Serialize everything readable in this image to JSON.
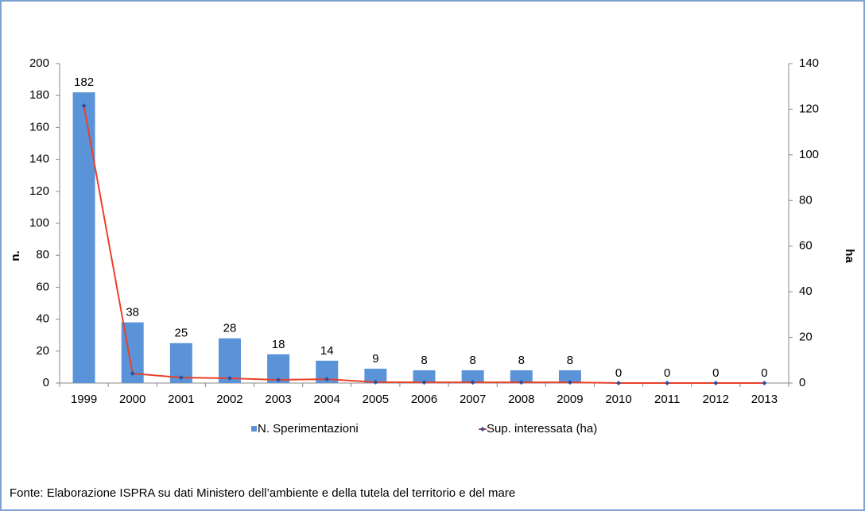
{
  "chart_data": {
    "type": "bar",
    "categories": [
      "1999",
      "2000",
      "2001",
      "2002",
      "2003",
      "2004",
      "2005",
      "2006",
      "2007",
      "2008",
      "2009",
      "2010",
      "2011",
      "2012",
      "2013"
    ],
    "series": [
      {
        "name": "N. Sperimentazioni",
        "type": "bar",
        "color": "#5b93d8",
        "values": [
          182,
          38,
          25,
          28,
          18,
          14,
          9,
          8,
          8,
          8,
          8,
          0,
          0,
          0,
          0
        ]
      },
      {
        "name": "Sup. interessata (ha)",
        "type": "line",
        "axis": "y2",
        "color": "#e8402a",
        "marker_color": "#2f4f9f",
        "values": [
          121.5,
          4.2,
          2.4,
          2.1,
          1.4,
          1.7,
          0.4,
          0.3,
          0.3,
          0.3,
          0.3,
          0,
          0,
          0,
          0
        ]
      }
    ],
    "ylabel": "n.",
    "y2label": "ha",
    "ylim": [
      0,
      200
    ],
    "yticks": [
      0,
      20,
      40,
      60,
      80,
      100,
      120,
      140,
      160,
      180,
      200
    ],
    "y2lim": [
      0,
      140
    ],
    "y2ticks": [
      0,
      20,
      40,
      60,
      80,
      100,
      120,
      140
    ],
    "grid": false,
    "source": "Fonte: Elaborazione ISPRA su dati Ministero dell’ambiente e della tutela del territorio e del mare"
  }
}
